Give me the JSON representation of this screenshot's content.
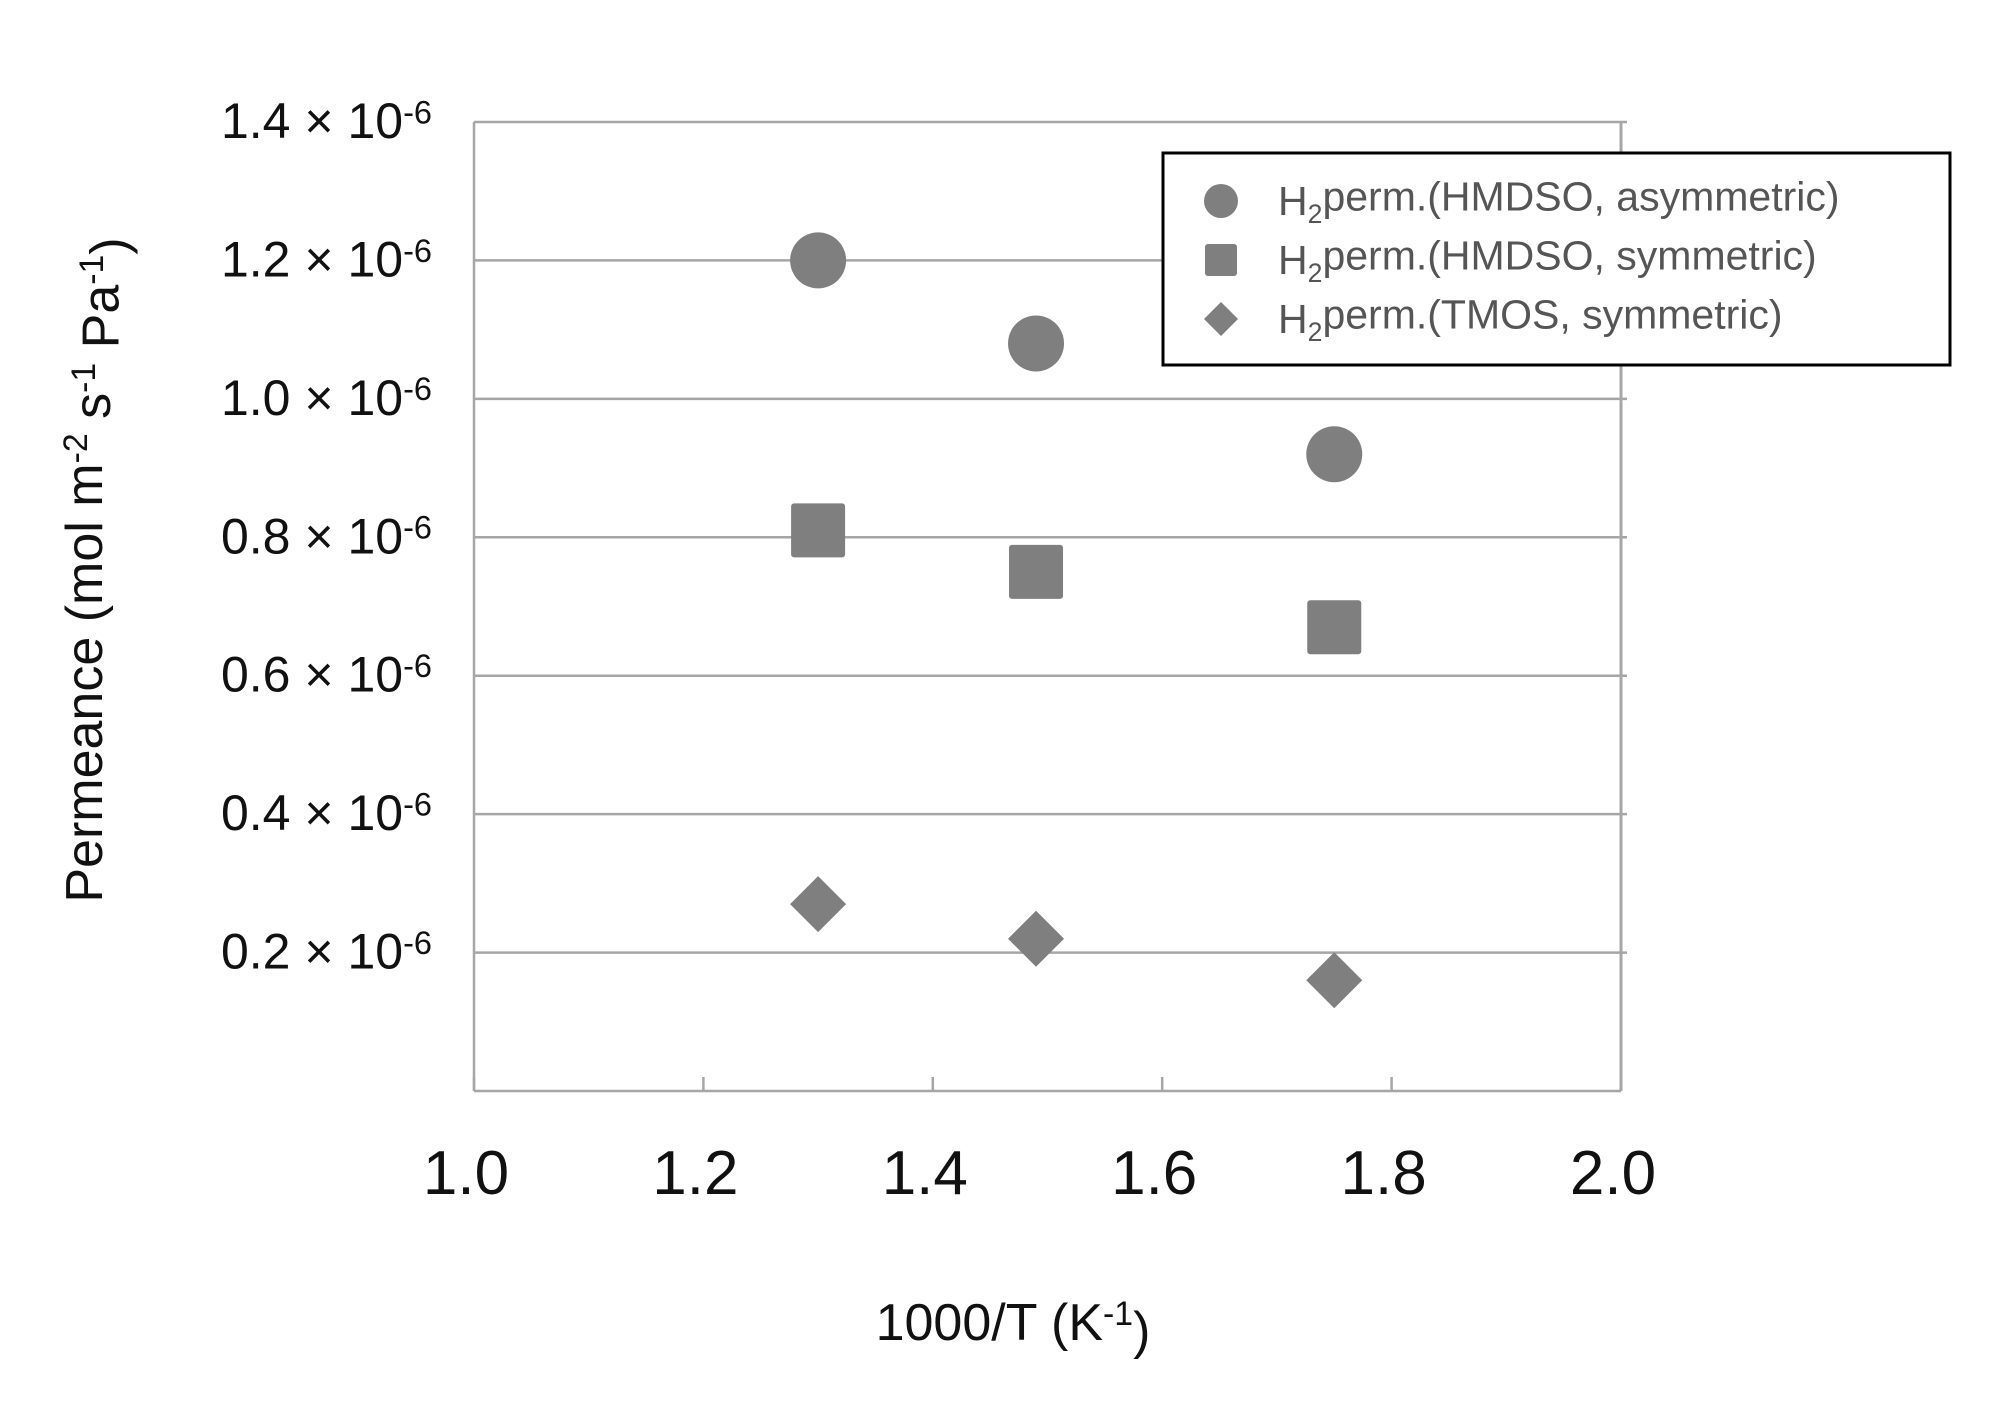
{
  "chart_data": {
    "type": "scatter",
    "title": "",
    "xlabel": "1000/T (K-1)",
    "ylabel": "Permeance (mol m-2 s-1 Pa-1)",
    "xlim": [
      1.0,
      2.0
    ],
    "ylim": [
      0.0,
      1.4e-06
    ],
    "x_ticks": [
      "1.0",
      "1.2",
      "1.4",
      "1.6",
      "1.8",
      "2.0"
    ],
    "y_ticks": [
      "0.2 × 10-6",
      "0.4 × 10-6",
      "0.6 × 10-6",
      "0.8 × 10-6",
      "1.0 × 10-6",
      "1.2 × 10-6",
      "1.4 × 10-6"
    ],
    "grid": "horizontal",
    "legend_position": "top-right",
    "series": [
      {
        "name": "H2perm.(HMDSO, asymmetric)",
        "marker": "circle",
        "color": "#7f7f7f",
        "x": [
          1.3,
          1.49,
          1.75
        ],
        "y": [
          1.2e-06,
          1.08e-06,
          9.2e-07
        ]
      },
      {
        "name": "H2perm.(HMDSO, symmetric)",
        "marker": "square",
        "color": "#7f7f7f",
        "x": [
          1.3,
          1.49,
          1.75
        ],
        "y": [
          8.1e-07,
          7.5e-07,
          6.7e-07
        ]
      },
      {
        "name": "H2perm.(TMOS, symmetric)",
        "marker": "diamond",
        "color": "#7f7f7f",
        "x": [
          1.3,
          1.49,
          1.75
        ],
        "y": [
          2.7e-07,
          2.2e-07,
          1.6e-07
        ]
      }
    ]
  }
}
